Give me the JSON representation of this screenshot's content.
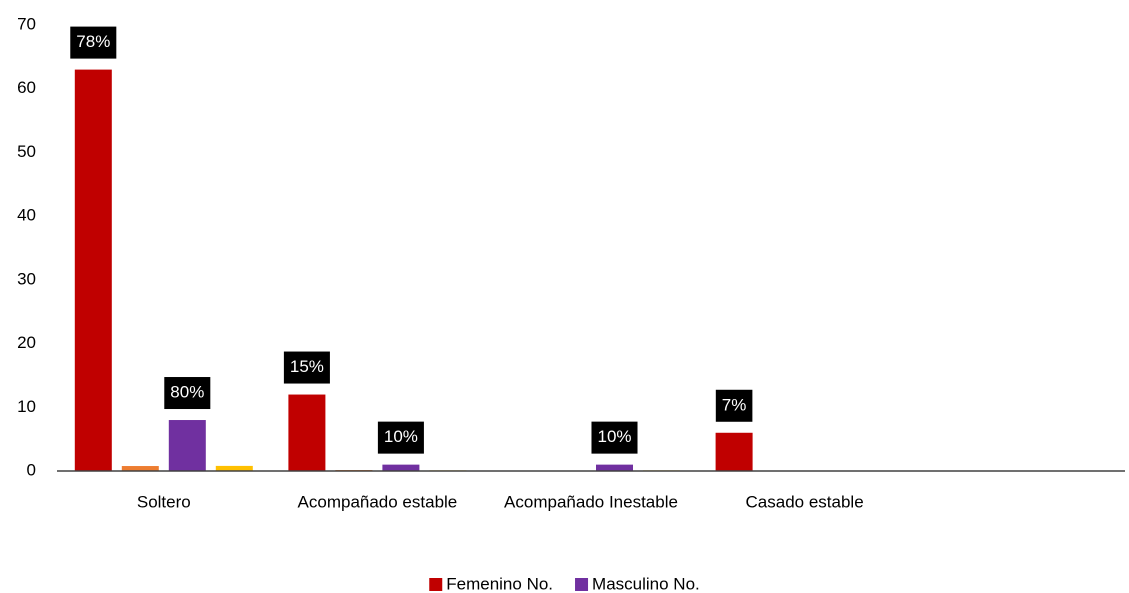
{
  "chart_data": {
    "type": "bar",
    "categories": [
      "Soltero",
      "Acompañado estable",
      "Acompañado Inestable",
      "Casado estable",
      null
    ],
    "series": [
      {
        "name": "Femenino No.",
        "color": "#c00000",
        "values": [
          63,
          12,
          0,
          6,
          null
        ]
      },
      {
        "color": "#ed7d31",
        "values": [
          0.78,
          0.15,
          null,
          0.07,
          null
        ],
        "value_labels": [
          "78%",
          "15%",
          null,
          "7%",
          null
        ]
      },
      {
        "name": "Masculino No.",
        "color": "#7030a0",
        "values": [
          8,
          1,
          1,
          0,
          null
        ]
      },
      {
        "color": "#ffc000",
        "values": [
          0.8,
          0.1,
          0.1,
          null,
          null
        ],
        "value_labels": [
          "80%",
          "10%",
          "10%",
          null,
          null
        ]
      }
    ],
    "ylim": [
      0,
      70
    ],
    "yticks": [
      0,
      10,
      20,
      30,
      40,
      50,
      60,
      70
    ],
    "grid": false,
    "legend": "bottom"
  }
}
